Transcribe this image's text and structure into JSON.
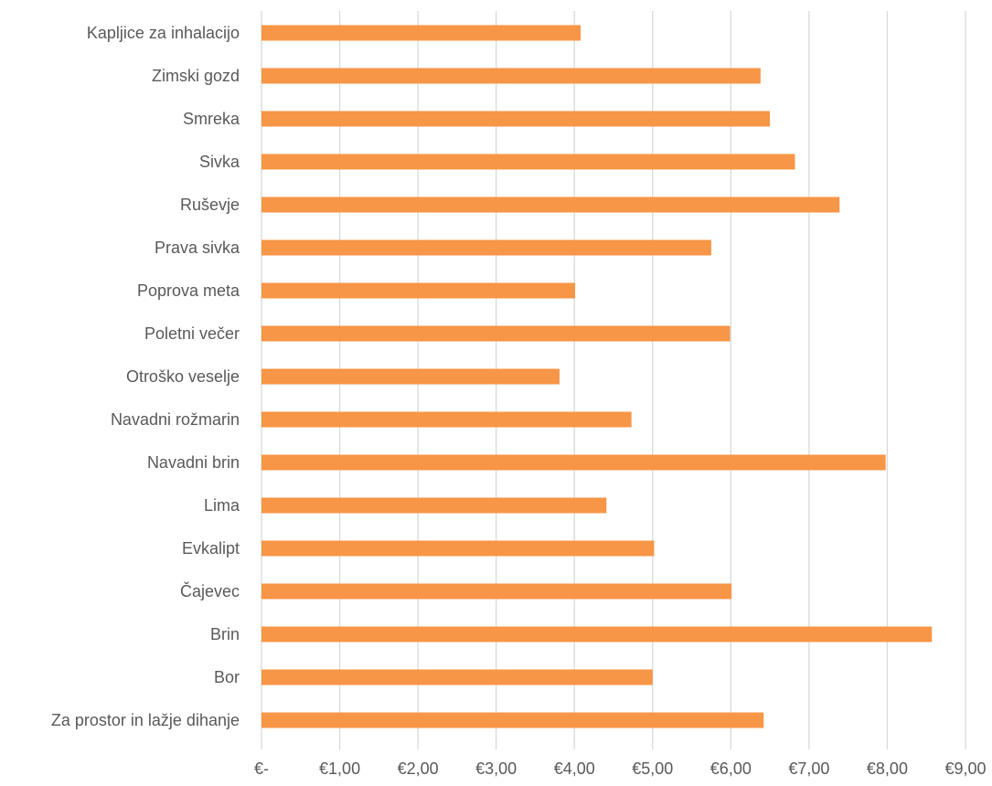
{
  "chart_data": {
    "type": "bar",
    "orientation": "horizontal",
    "title": "",
    "xlabel": "",
    "ylabel": "",
    "categories": [
      "Kapljice za inhalacijo",
      "Zimski gozd",
      "Smreka",
      "Sivka",
      "Ruševje",
      "Prava sivka",
      "Poprova meta",
      "Poletni večer",
      "Otroško veselje",
      "Navadni rožmarin",
      "Navadni brin",
      "Lima",
      "Evkalipt",
      "Čajevec",
      "Brin",
      "Bor",
      "Za prostor in lažje dihanje"
    ],
    "values": [
      4.08,
      6.38,
      6.5,
      6.82,
      7.39,
      5.75,
      4.01,
      5.99,
      3.81,
      4.73,
      7.98,
      4.41,
      5.02,
      6.01,
      8.57,
      5.0,
      6.42
    ],
    "xlim": [
      0,
      9
    ],
    "xticks": [
      0,
      1,
      2,
      3,
      4,
      5,
      6,
      7,
      8,
      9
    ],
    "xtick_labels": [
      "€-",
      "€1,00",
      "€2,00",
      "€3,00",
      "€4,00",
      "€5,00",
      "€6,00",
      "€7,00",
      "€8,00",
      "€9,00"
    ],
    "grid": "vertical",
    "legend": "none",
    "bar_color": "#f79646"
  }
}
